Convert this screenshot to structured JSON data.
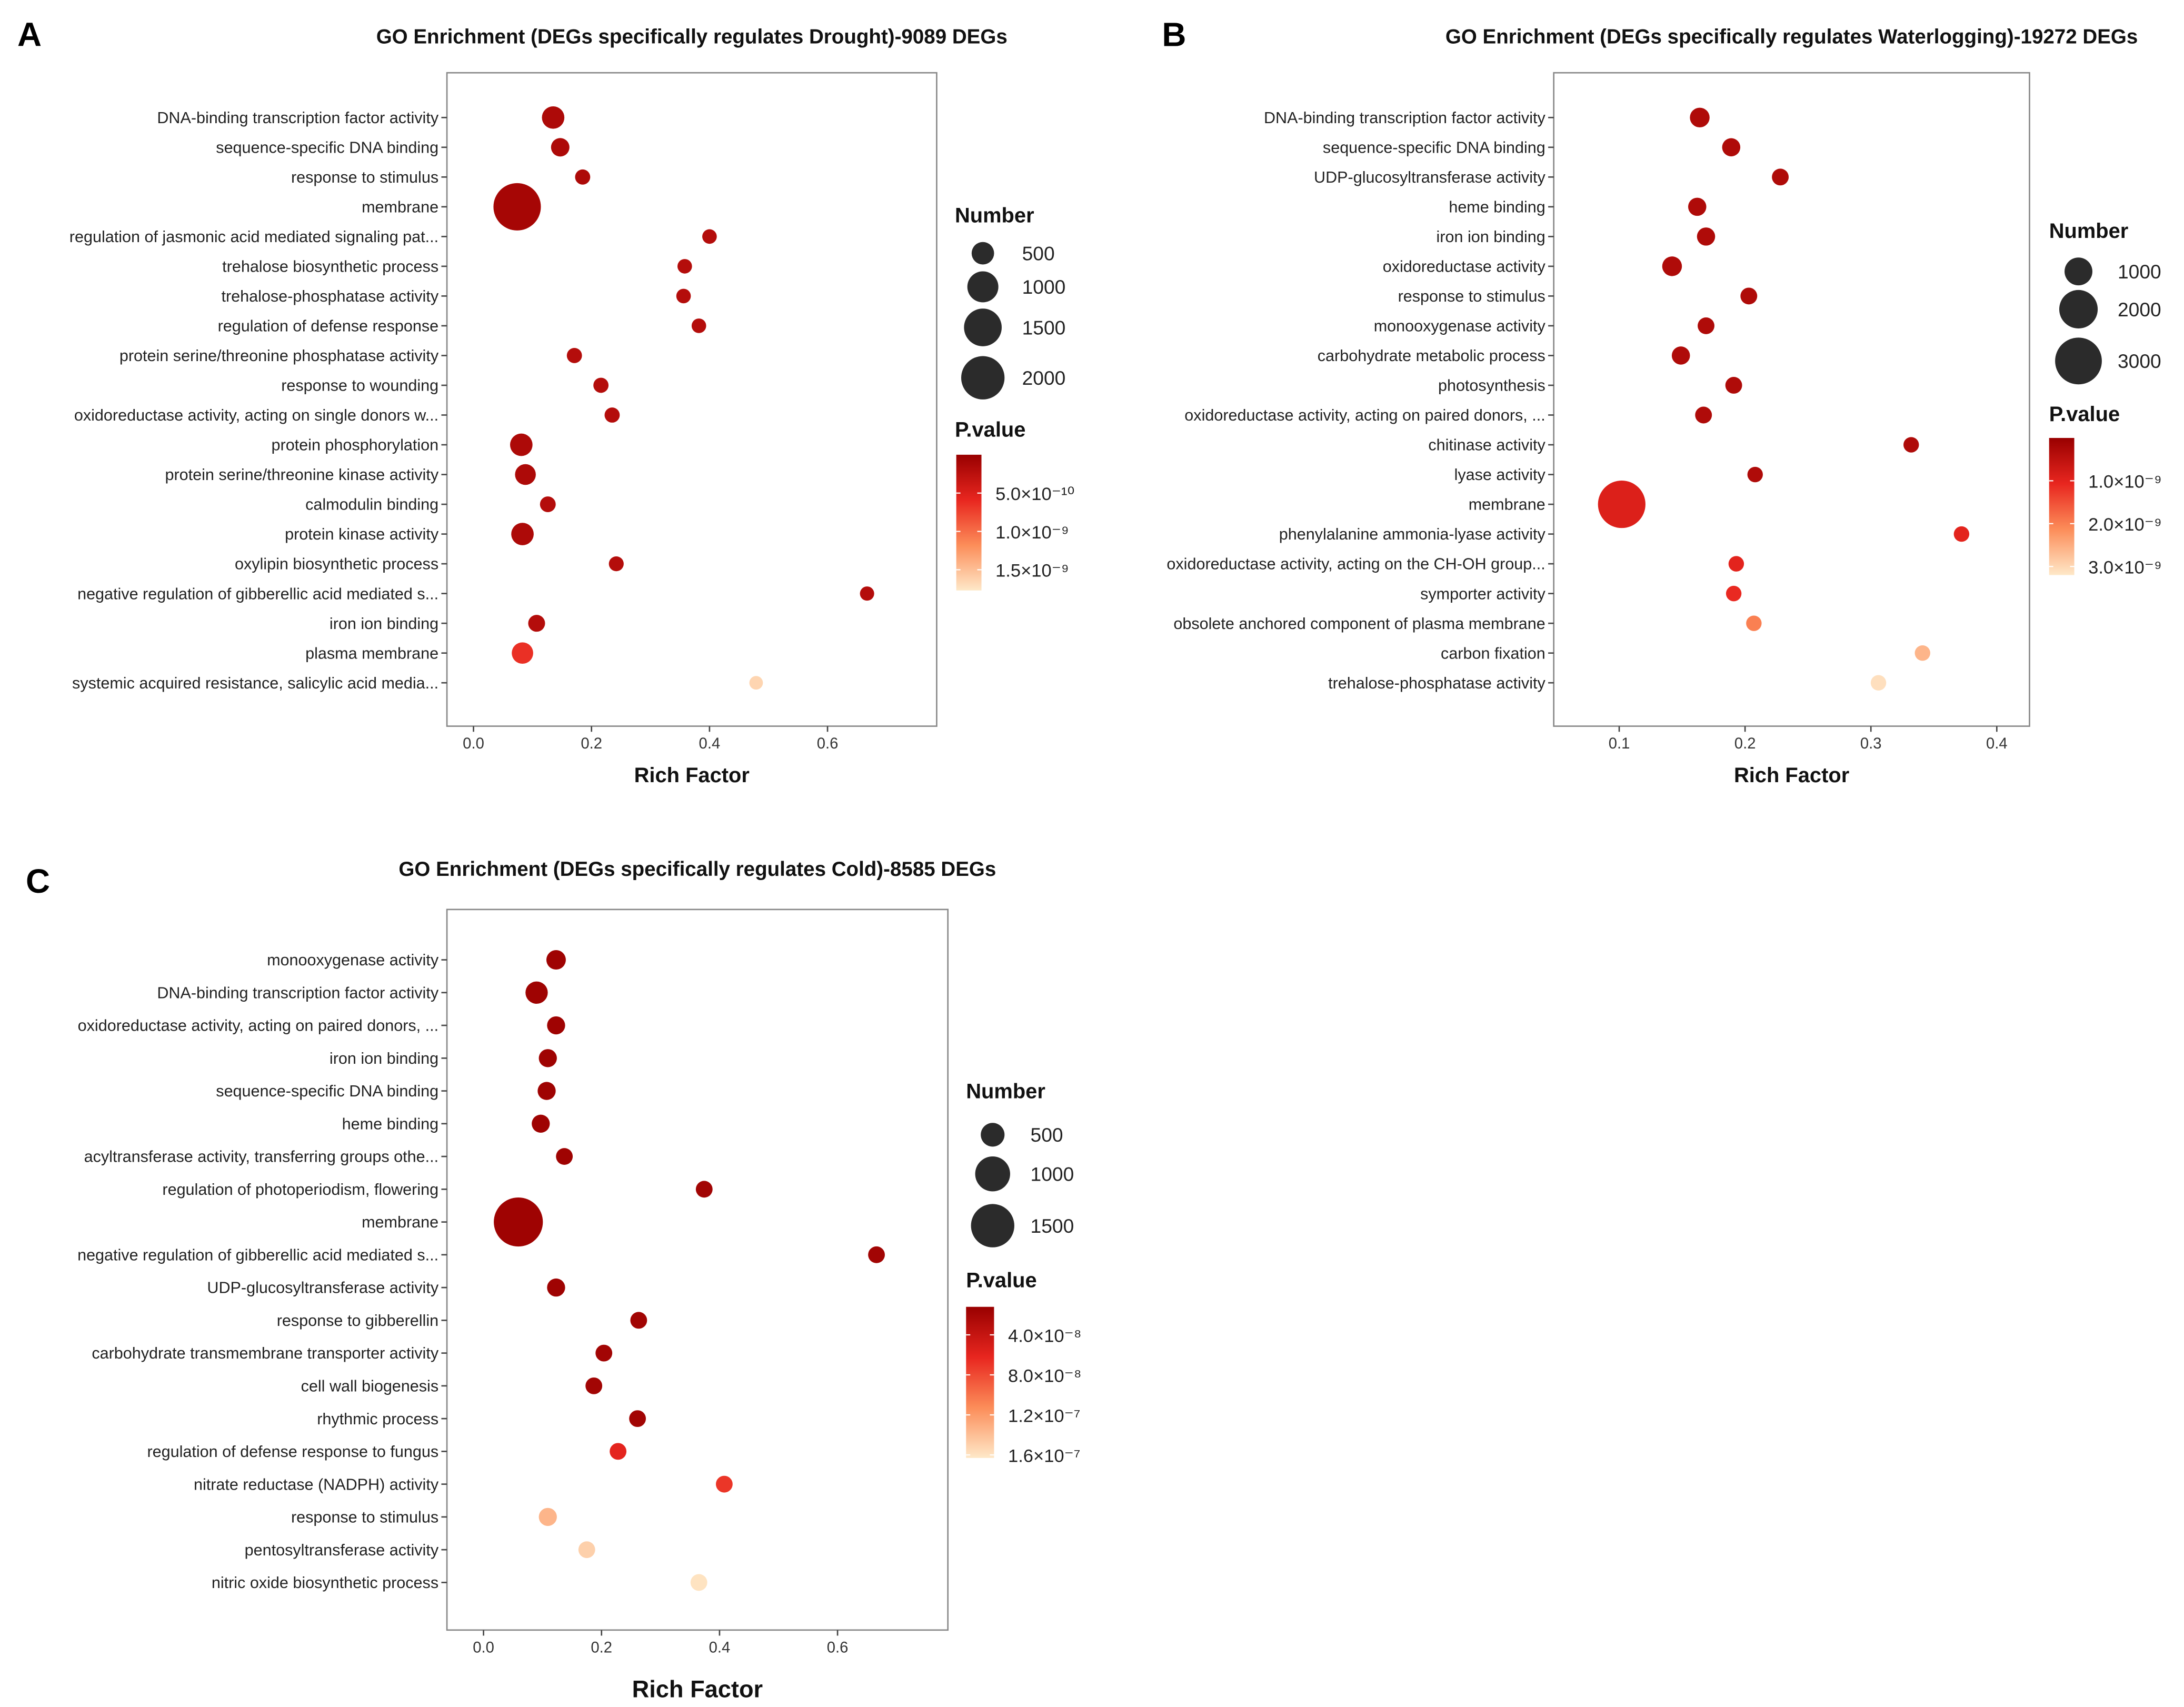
{
  "colors": {
    "scale": [
      "#990000",
      "#e8261f",
      "#fc8d59",
      "#fee8c8"
    ],
    "legend_dot": "#2b2b2b",
    "frame": "#888888"
  },
  "chart_data": [
    {
      "type": "scatter",
      "panel_label": "A",
      "title": "GO Enrichment (DEGs specifically regulates Drought)-9089 DEGs",
      "xlabel": "Rich Factor",
      "xlim": [
        -0.045,
        0.785
      ],
      "xticks": [
        0.0,
        0.2,
        0.4,
        0.6
      ],
      "xtick_labels": [
        "0.0",
        "0.2",
        "0.4",
        "0.6"
      ],
      "size_legend_title": "Number",
      "size_legend": [
        500,
        1000,
        1500,
        2000
      ],
      "size_legend_labels": [
        "500",
        "1000",
        "1500",
        "2000"
      ],
      "color_legend_title": "P.value",
      "pvalue_range": [
        0,
        1.77e-09
      ],
      "pvalue_ticks": [
        5e-10,
        1e-09,
        1.5e-09
      ],
      "pvalue_tick_labels": [
        "5.0×10⁻¹⁰",
        "1.0×10⁻⁹",
        "1.5×10⁻⁹"
      ],
      "terms": [
        "DNA-binding transcription factor activity",
        "sequence-specific DNA binding",
        "response to stimulus",
        "membrane",
        "regulation of jasmonic acid mediated signaling pat...",
        "trehalose biosynthetic process",
        "trehalose-phosphatase activity",
        "regulation of defense response",
        "protein serine/threonine phosphatase activity",
        "response to wounding",
        "oxidoreductase activity, acting on single donors w...",
        "protein phosphorylation",
        "protein serine/threonine kinase activity",
        "calmodulin binding",
        "protein kinase activity",
        "oxylipin biosynthetic process",
        "negative regulation of gibberellic acid mediated s...",
        "iron ion binding",
        "plasma membrane",
        "systemic acquired resistance, salicylic acid media..."
      ],
      "rich_factor": [
        0.135,
        0.147,
        0.185,
        0.074,
        0.4,
        0.358,
        0.356,
        0.382,
        0.171,
        0.216,
        0.235,
        0.081,
        0.088,
        0.126,
        0.083,
        0.242,
        0.667,
        0.107,
        0.083,
        0.479
      ],
      "number": [
        500,
        320,
        200,
        2400,
        180,
        180,
        180,
        180,
        200,
        200,
        200,
        500,
        420,
        220,
        500,
        190,
        170,
        260,
        450,
        150
      ],
      "pvalue": [
        1.5e-10,
        1.5e-10,
        1.5e-10,
        1e-10,
        2e-10,
        2e-10,
        2e-10,
        2e-10,
        2e-10,
        2e-10,
        2e-10,
        1.5e-10,
        1.5e-10,
        2e-10,
        1.5e-10,
        2e-10,
        2e-10,
        2e-10,
        6.5e-10,
        1.65e-09
      ]
    },
    {
      "type": "scatter",
      "panel_label": "B",
      "title": "GO Enrichment (DEGs specifically regulates Waterlogging)-19272 DEGs",
      "xlabel": "Rich Factor",
      "xlim": [
        0.048,
        0.426
      ],
      "xticks": [
        0.1,
        0.2,
        0.3,
        0.4
      ],
      "xtick_labels": [
        "0.1",
        "0.2",
        "0.3",
        "0.4"
      ],
      "size_legend_title": "Number",
      "size_legend": [
        1000,
        2000,
        3000
      ],
      "size_legend_labels": [
        "1000",
        "2000",
        "3000"
      ],
      "color_legend_title": "P.value",
      "pvalue_range": [
        0,
        3.2e-09
      ],
      "pvalue_ticks": [
        1e-09,
        2e-09,
        3e-09
      ],
      "pvalue_tick_labels": [
        "1.0×10⁻⁹",
        "2.0×10⁻⁹",
        "3.0×10⁻⁹"
      ],
      "terms": [
        "DNA-binding transcription factor activity",
        "sequence-specific DNA binding",
        "UDP-glucosyltransferase activity",
        "heme binding",
        "iron ion binding",
        "oxidoreductase activity",
        "response to stimulus",
        "monooxygenase activity",
        "carbohydrate metabolic process",
        "photosynthesis",
        "oxidoreductase activity, acting on paired donors, ...",
        "chitinase activity",
        "lyase activity",
        "membrane",
        "phenylalanine ammonia-lyase activity",
        "oxidoreductase activity, acting on the CH-OH group...",
        "symporter activity",
        "obsolete anchored component of plasma membrane",
        "carbon fixation",
        "trehalose-phosphatase activity"
      ],
      "rich_factor": [
        0.164,
        0.189,
        0.228,
        0.162,
        0.169,
        0.142,
        0.203,
        0.169,
        0.149,
        0.191,
        0.167,
        0.332,
        0.208,
        0.102,
        0.372,
        0.193,
        0.191,
        0.207,
        0.341,
        0.306
      ],
      "number": [
        450,
        370,
        300,
        370,
        370,
        450,
        300,
        300,
        370,
        300,
        300,
        240,
        240,
        3100,
        240,
        240,
        240,
        240,
        240,
        240
      ],
      "pvalue": [
        3e-10,
        3e-10,
        3e-10,
        3e-10,
        3e-10,
        3e-10,
        3e-10,
        3e-10,
        3e-10,
        3e-10,
        3e-10,
        3e-10,
        3e-10,
        9e-10,
        1e-09,
        1e-09,
        1.1e-09,
        2e-09,
        2.6e-09,
        3.1e-09
      ]
    },
    {
      "type": "scatter",
      "panel_label": "C",
      "title": "GO Enrichment (DEGs specifically regulates Cold)-8585 DEGs",
      "xlabel": "Rich Factor",
      "xlim": [
        -0.062,
        0.787
      ],
      "xticks": [
        0.0,
        0.2,
        0.4,
        0.6
      ],
      "xtick_labels": [
        "0.0",
        "0.2",
        "0.4",
        "0.6"
      ],
      "size_legend_title": "Number",
      "size_legend": [
        500,
        1000,
        1500
      ],
      "size_legend_labels": [
        "500",
        "1000",
        "1500"
      ],
      "color_legend_title": "P.value",
      "pvalue_range": [
        1.2e-08,
        1.63e-07
      ],
      "pvalue_ticks": [
        4e-08,
        8e-08,
        1.2e-07,
        1.6e-07
      ],
      "pvalue_tick_labels": [
        "4.0×10⁻⁸",
        "8.0×10⁻⁸",
        "1.2×10⁻⁷",
        "1.6×10⁻⁷"
      ],
      "terms": [
        "monooxygenase activity",
        "DNA-binding transcription factor activity",
        "oxidoreductase activity, acting on paired donors, ...",
        "iron ion binding",
        "sequence-specific DNA binding",
        "heme binding",
        "acyltransferase activity, transferring groups othe...",
        "regulation of photoperiodism, flowering",
        "membrane",
        "negative regulation of gibberellic acid mediated s...",
        "UDP-glucosyltransferase activity",
        "response to gibberellin",
        "carbohydrate transmembrane transporter activity",
        "cell wall biogenesis",
        "rhythmic process",
        "regulation of defense response to fungus",
        "nitrate reductase (NADPH) activity",
        "response to stimulus",
        "pentosyltransferase activity",
        "nitric oxide biosynthetic process"
      ],
      "rich_factor": [
        0.123,
        0.09,
        0.123,
        0.109,
        0.107,
        0.097,
        0.137,
        0.374,
        0.059,
        0.666,
        0.123,
        0.263,
        0.204,
        0.187,
        0.261,
        0.228,
        0.408,
        0.109,
        0.175,
        0.365
      ],
      "number": [
        360,
        450,
        320,
        320,
        320,
        320,
        285,
        285,
        1900,
        285,
        320,
        285,
        285,
        285,
        285,
        285,
        285,
        320,
        285,
        285
      ],
      "pvalue": [
        1.6e-08,
        1.6e-08,
        1.6e-08,
        1.6e-08,
        1.6e-08,
        1.6e-08,
        1.6e-08,
        1.8e-08,
        1.6e-08,
        1.8e-08,
        1.6e-08,
        1.8e-08,
        1.8e-08,
        1.8e-08,
        1.8e-08,
        6e-08,
        7e-08,
        1.35e-07,
        1.5e-07,
        1.6e-07
      ]
    }
  ]
}
